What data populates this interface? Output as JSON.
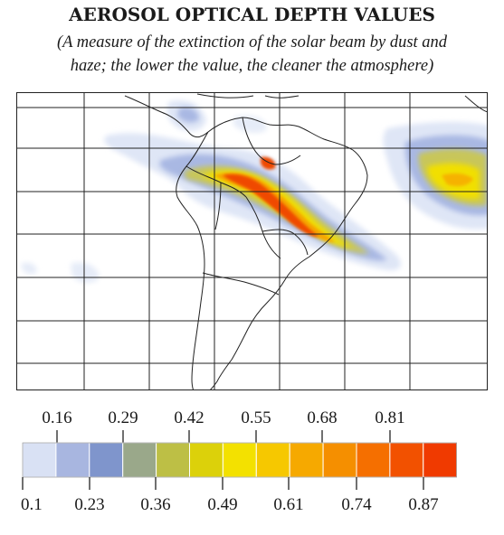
{
  "title": "AEROSOL OPTICAL DEPTH VALUES",
  "subtitle_line1": "(A measure of the extinction of the solar beam by dust and",
  "subtitle_line2": "haze; the lower the value, the cleaner the atmosphere)",
  "legend": {
    "upper_labels": [
      "0.16",
      "0.29",
      "0.42",
      "0.55",
      "0.68",
      "0.81"
    ],
    "lower_labels": [
      "0.1",
      "0.23",
      "0.36",
      "0.49",
      "0.61",
      "0.74",
      "0.87"
    ],
    "colors": [
      "#d9e1f4",
      "#a8b6e0",
      "#7f95cc",
      "#9aa88a",
      "#bdbf45",
      "#dcd10a",
      "#f3e100",
      "#f6c800",
      "#f6a900",
      "#f58f00",
      "#f56f00",
      "#f25100",
      "#f03a00"
    ]
  }
}
